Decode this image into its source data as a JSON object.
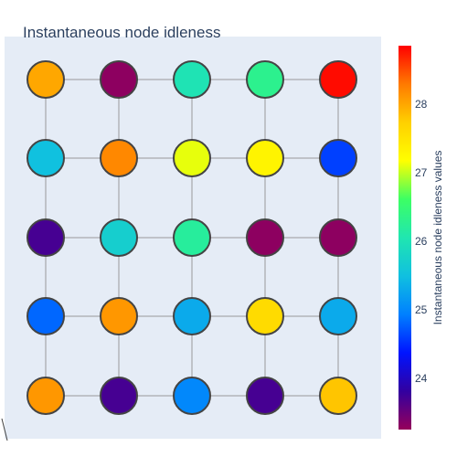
{
  "chart_data": {
    "type": "scatter",
    "title": "Instantaneous node idleness",
    "colorbar": {
      "title": "Instantaneous node idleness values",
      "ticks": [
        24,
        25,
        26,
        27,
        28
      ],
      "range": [
        23.25,
        28.85
      ],
      "colorscale": "rainbow"
    },
    "grid": {
      "rows": 5,
      "cols": 5
    },
    "nodes": [
      {
        "row": 0,
        "col": 0,
        "value": 28.0
      },
      {
        "row": 0,
        "col": 1,
        "value": 23.3
      },
      {
        "row": 0,
        "col": 2,
        "value": 26.0
      },
      {
        "row": 0,
        "col": 3,
        "value": 26.3
      },
      {
        "row": 0,
        "col": 4,
        "value": 28.8
      },
      {
        "row": 1,
        "col": 0,
        "value": 25.5
      },
      {
        "row": 1,
        "col": 1,
        "value": 28.2
      },
      {
        "row": 1,
        "col": 2,
        "value": 27.1
      },
      {
        "row": 1,
        "col": 3,
        "value": 27.3
      },
      {
        "row": 1,
        "col": 4,
        "value": 24.6
      },
      {
        "row": 2,
        "col": 0,
        "value": 23.7
      },
      {
        "row": 2,
        "col": 1,
        "value": 25.7
      },
      {
        "row": 2,
        "col": 2,
        "value": 26.2
      },
      {
        "row": 2,
        "col": 3,
        "value": 23.3
      },
      {
        "row": 2,
        "col": 4,
        "value": 23.3
      },
      {
        "row": 3,
        "col": 0,
        "value": 24.8
      },
      {
        "row": 3,
        "col": 1,
        "value": 28.1
      },
      {
        "row": 3,
        "col": 2,
        "value": 25.3
      },
      {
        "row": 3,
        "col": 3,
        "value": 27.6
      },
      {
        "row": 3,
        "col": 4,
        "value": 25.3
      },
      {
        "row": 4,
        "col": 0,
        "value": 28.1
      },
      {
        "row": 4,
        "col": 1,
        "value": 23.7
      },
      {
        "row": 4,
        "col": 2,
        "value": 25.0
      },
      {
        "row": 4,
        "col": 3,
        "value": 23.7
      },
      {
        "row": 4,
        "col": 4,
        "value": 27.8
      }
    ],
    "edges": "4-neighbour grid",
    "plot_background": "#e5ecf6",
    "marker_outline": "#444444",
    "edge_color": "#999999"
  }
}
